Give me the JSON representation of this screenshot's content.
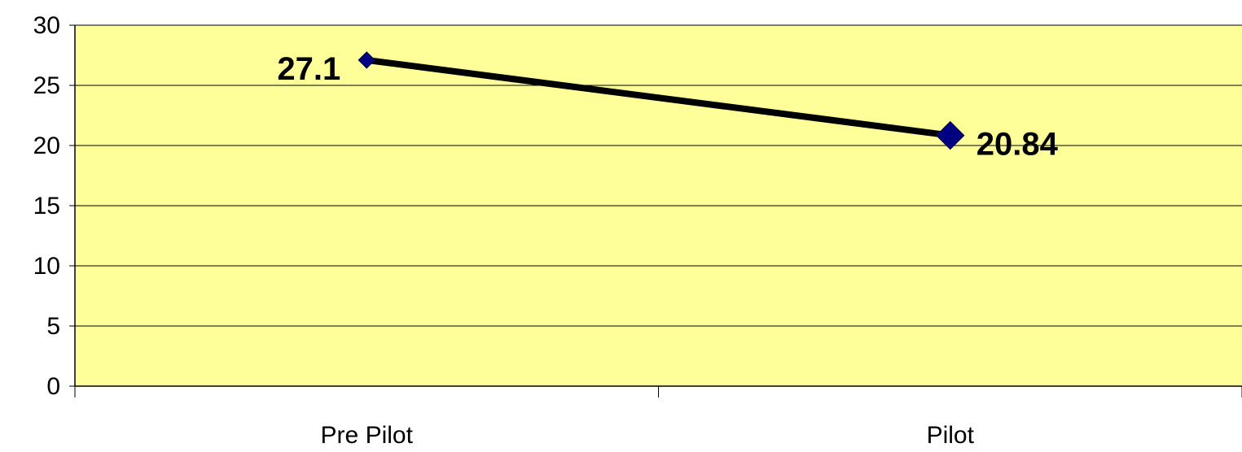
{
  "chart_data": {
    "type": "line",
    "categories": [
      "Pre Pilot",
      "Pilot"
    ],
    "series": [
      {
        "values": [
          27.1,
          20.84
        ]
      }
    ],
    "data_labels": [
      "27.1",
      "20.84"
    ],
    "y_ticks": [
      "0",
      "5",
      "10",
      "15",
      "20",
      "25",
      "30"
    ],
    "ylim": [
      0,
      30
    ],
    "grid": true,
    "legend": "none",
    "colors": {
      "plot_background": "#FFFF99",
      "line": "#000000",
      "marker": "#000080",
      "gridline": "#000000"
    }
  }
}
